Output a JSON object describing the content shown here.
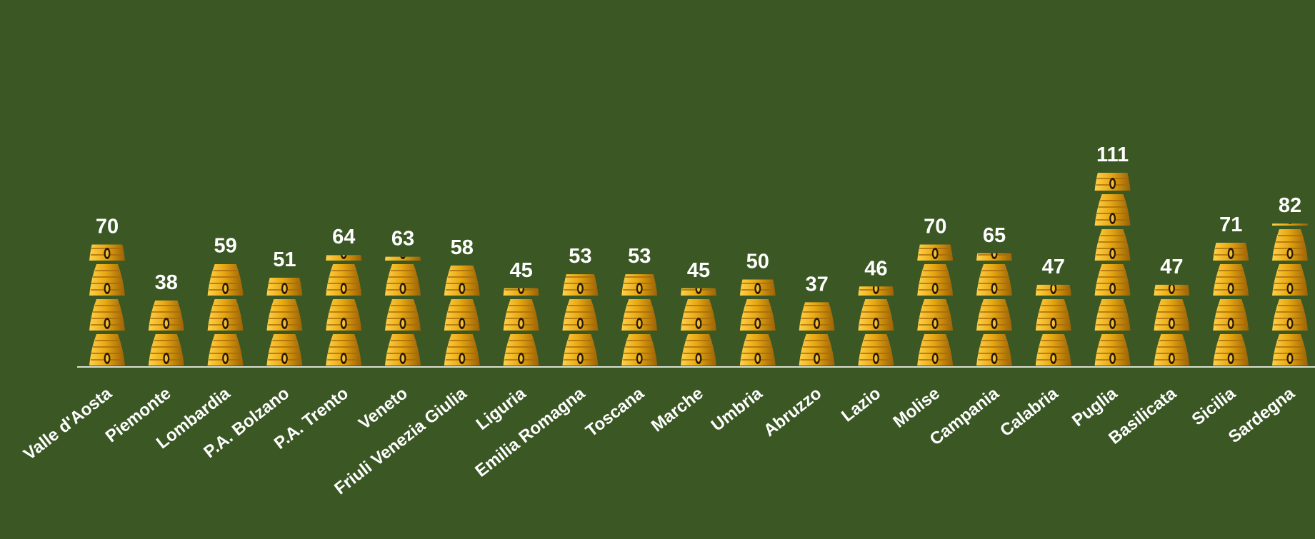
{
  "chart_data": {
    "type": "bar",
    "marker": "beehive-icon",
    "units_per_icon": 20,
    "categories": [
      "Valle d'Aosta",
      "Piemonte",
      "Lombardia",
      "P.A. Bolzano",
      "P.A. Trento",
      "Veneto",
      "Friuli Venezia Giulia",
      "Liguria",
      "Emilia Romagna",
      "Toscana",
      "Marche",
      "Umbria",
      "Abruzzo",
      "Lazio",
      "Molise",
      "Campania",
      "Calabria",
      "Puglia",
      "Basilicata",
      "Sicilia",
      "Sardegna"
    ],
    "values": [
      70,
      38,
      59,
      51,
      64,
      63,
      58,
      45,
      53,
      53,
      45,
      50,
      37,
      46,
      70,
      65,
      47,
      111,
      47,
      71,
      82
    ],
    "title": "",
    "xlabel": "",
    "ylabel": "",
    "ylim": [
      0,
      130
    ],
    "grid": false,
    "legend": "none",
    "colors": {
      "background": "#3a5724",
      "hive_light": "#ffd24a",
      "hive_mid": "#e8a812",
      "hive_dark": "#9a6206",
      "door": "#2a1a05",
      "text": "#ffffff",
      "axis": "#d8e0d0"
    }
  }
}
